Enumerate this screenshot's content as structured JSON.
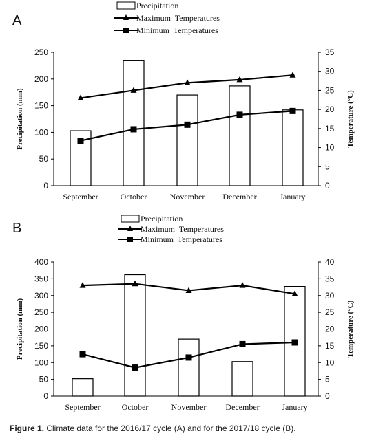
{
  "chart_data": [
    {
      "type": "bar",
      "panel_label": "A",
      "categories": [
        "September",
        "October",
        "November",
        "December",
        "January"
      ],
      "series": [
        {
          "name": "Precipitation",
          "kind": "bar",
          "axis": "left",
          "values": [
            103,
            235,
            170,
            187,
            142
          ]
        },
        {
          "name": "Maximum  Temperatures",
          "kind": "line",
          "marker": "triangle",
          "axis": "right",
          "values": [
            23,
            25,
            27,
            27.8,
            29
          ]
        },
        {
          "name": "Minimum  Temperatures",
          "kind": "line",
          "marker": "square",
          "axis": "right",
          "values": [
            11.8,
            14.8,
            16,
            18.6,
            19.6
          ]
        }
      ],
      "ylabel": "Precipitation (mm)",
      "ylabel_right": "Temperature (°C)",
      "ylim": [
        0,
        250
      ],
      "yticks": [
        0,
        50,
        100,
        150,
        200,
        250
      ],
      "ylim_right": [
        0,
        35
      ],
      "yticks_right": [
        0,
        5,
        10,
        15,
        20,
        25,
        30,
        35
      ],
      "legend_position": "top-center",
      "grid": false
    },
    {
      "type": "bar",
      "panel_label": "B",
      "categories": [
        "September",
        "October",
        "November",
        "December",
        "January"
      ],
      "series": [
        {
          "name": "Precipitation",
          "kind": "bar",
          "axis": "left",
          "values": [
            52,
            362,
            170,
            103,
            327
          ]
        },
        {
          "name": "Maximum  Temperatures",
          "kind": "line",
          "marker": "triangle",
          "axis": "right",
          "values": [
            33,
            33.5,
            31.5,
            33,
            30.5
          ]
        },
        {
          "name": "Minimum  Temperatures",
          "kind": "line",
          "marker": "square",
          "axis": "right",
          "values": [
            12.5,
            8.5,
            11.5,
            15.5,
            16
          ]
        }
      ],
      "ylabel": "Precipitation (mm)",
      "ylabel_right": "Temperature (°C)",
      "ylim": [
        0,
        400
      ],
      "yticks": [
        0,
        50,
        100,
        150,
        200,
        250,
        300,
        350,
        400
      ],
      "ylim_right": [
        0,
        40
      ],
      "yticks_right": [
        0,
        5,
        10,
        15,
        20,
        25,
        30,
        35,
        40
      ],
      "legend_position": "top-center",
      "grid": false
    }
  ],
  "caption": {
    "label": "Figure 1.",
    "text": " Climate data for the 2016/17 cycle (A) and for the 2017/18 cycle (B)."
  }
}
